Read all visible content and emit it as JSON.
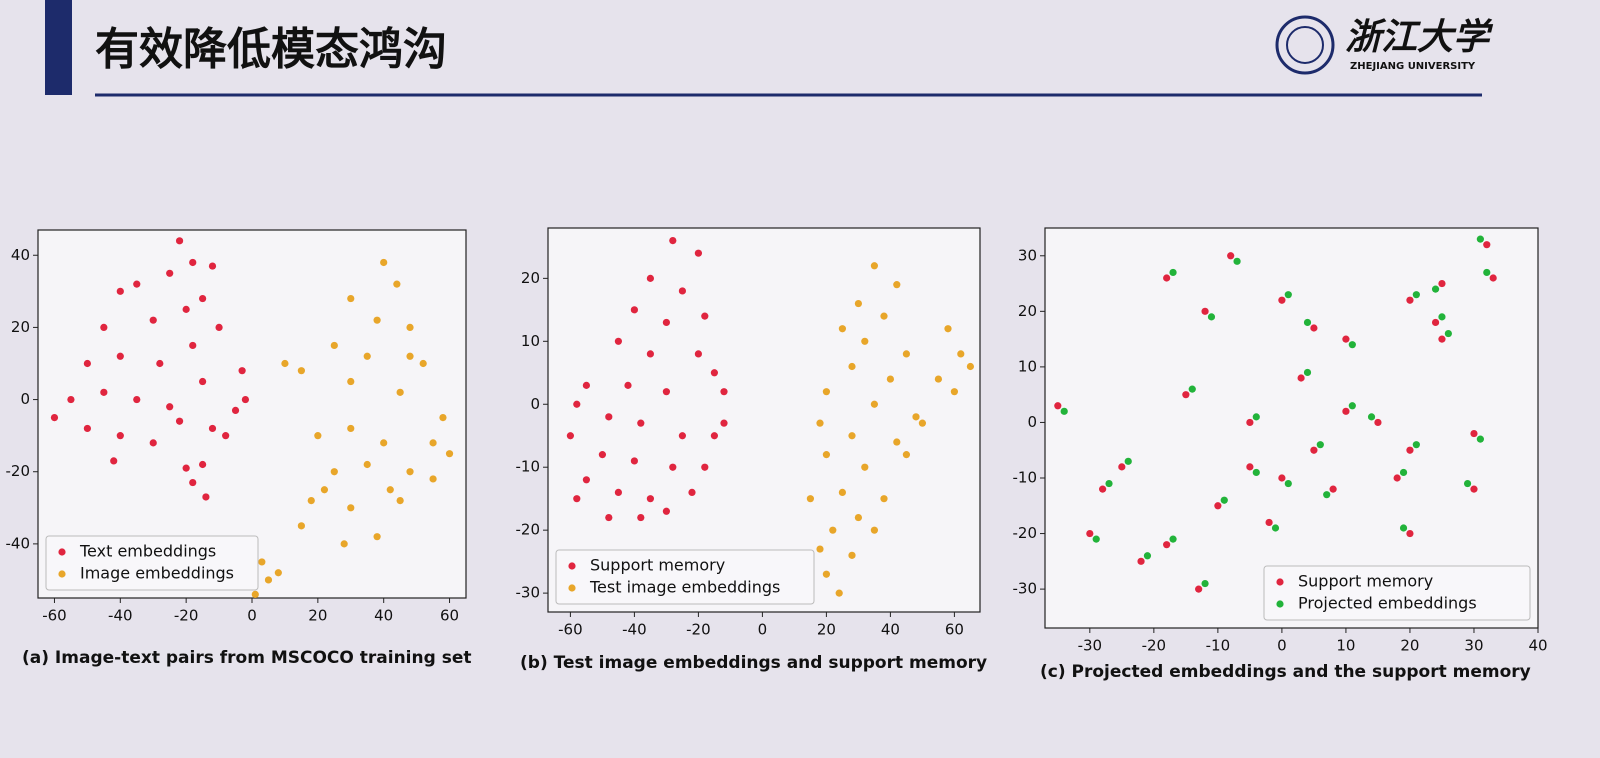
{
  "slide": {
    "title": "有效降低模态鸿沟",
    "logo_text": "浙江大学",
    "logo_subtext": "ZHEJIANG UNIVERSITY"
  },
  "chart_data": [
    {
      "type": "scatter",
      "title": "(a) Image-text pairs from MSCOCO training set",
      "legend": "lower left",
      "xlim": [
        -65,
        65
      ],
      "ylim": [
        -55,
        47
      ],
      "xticks": [
        -60,
        -40,
        -20,
        0,
        20,
        40,
        60
      ],
      "yticks": [
        -40,
        -20,
        0,
        20,
        40
      ],
      "series": [
        {
          "name": "Text embeddings",
          "color": "#e0253f",
          "x": [
            -40,
            -35,
            -25,
            -18,
            -12,
            -22,
            -45,
            -30,
            -20,
            -15,
            -50,
            -40,
            -28,
            -18,
            -10,
            -55,
            -45,
            -35,
            -25,
            -15,
            -60,
            -50,
            -40,
            -30,
            -22,
            -12,
            -5,
            -3,
            -2,
            -42,
            -20,
            -15,
            -14,
            -18,
            -8
          ],
          "y": [
            30,
            32,
            35,
            38,
            37,
            44,
            20,
            22,
            25,
            28,
            10,
            12,
            10,
            15,
            20,
            0,
            2,
            0,
            -2,
            5,
            -5,
            -8,
            -10,
            -12,
            -6,
            -8,
            -3,
            8,
            0,
            -17,
            -19,
            -18,
            -27,
            -23,
            -10
          ]
        },
        {
          "name": "Image embeddings",
          "color": "#e8a62a",
          "x": [
            40,
            44,
            30,
            38,
            48,
            25,
            35,
            48,
            52,
            15,
            30,
            45,
            58,
            20,
            30,
            40,
            55,
            25,
            35,
            48,
            55,
            18,
            30,
            45,
            15,
            28,
            38,
            3,
            5,
            1,
            8,
            22,
            42,
            60,
            10
          ],
          "y": [
            38,
            32,
            28,
            22,
            20,
            15,
            12,
            12,
            10,
            8,
            5,
            2,
            -5,
            -10,
            -8,
            -12,
            -12,
            -20,
            -18,
            -20,
            -22,
            -28,
            -30,
            -28,
            -35,
            -40,
            -38,
            -45,
            -50,
            -54,
            -48,
            -25,
            -25,
            -15,
            10
          ]
        }
      ]
    },
    {
      "type": "scatter",
      "title": "(b) Test image embeddings and support memory",
      "legend": "lower left",
      "xlim": [
        -67,
        68
      ],
      "ylim": [
        -33,
        28
      ],
      "xticks": [
        -60,
        -40,
        -20,
        0,
        20,
        40,
        60
      ],
      "yticks": [
        -30,
        -20,
        -10,
        0,
        10,
        20
      ],
      "series": [
        {
          "name": "Support memory",
          "color": "#e0253f",
          "x": [
            -28,
            -20,
            -35,
            -25,
            -40,
            -30,
            -18,
            -45,
            -35,
            -20,
            -15,
            -55,
            -42,
            -30,
            -12,
            -58,
            -48,
            -38,
            -25,
            -15,
            -60,
            -50,
            -40,
            -28,
            -18,
            -55,
            -45,
            -35,
            -22,
            -48,
            -38,
            -30,
            -58,
            -12
          ],
          "y": [
            26,
            24,
            20,
            18,
            15,
            13,
            14,
            10,
            8,
            8,
            5,
            3,
            3,
            2,
            2,
            0,
            -2,
            -3,
            -5,
            -5,
            -5,
            -8,
            -9,
            -10,
            -10,
            -12,
            -14,
            -15,
            -14,
            -18,
            -18,
            -17,
            -15,
            -3
          ]
        },
        {
          "name": "Test image embeddings",
          "color": "#e8a62a",
          "x": [
            35,
            42,
            30,
            38,
            25,
            32,
            45,
            58,
            62,
            28,
            40,
            55,
            60,
            20,
            35,
            48,
            18,
            28,
            42,
            20,
            32,
            45,
            25,
            38,
            30,
            22,
            35,
            18,
            20,
            24,
            28,
            50,
            65,
            15
          ],
          "y": [
            22,
            19,
            16,
            14,
            12,
            10,
            8,
            12,
            8,
            6,
            4,
            4,
            2,
            2,
            0,
            -2,
            -3,
            -5,
            -6,
            -8,
            -10,
            -8,
            -14,
            -15,
            -18,
            -20,
            -20,
            -23,
            -27,
            -30,
            -24,
            -3,
            6,
            -15
          ]
        }
      ]
    },
    {
      "type": "scatter",
      "title": "(c) Projected embeddings and the support memory",
      "legend": "lower right",
      "xlim": [
        -37,
        40
      ],
      "ylim": [
        -37,
        35
      ],
      "xticks": [
        -30,
        -20,
        -10,
        0,
        10,
        20,
        30,
        40
      ],
      "yticks": [
        -30,
        -20,
        -10,
        0,
        10,
        20,
        30
      ],
      "series": [
        {
          "name": "Support memory",
          "color": "#e0253f",
          "x": [
            -35,
            -18,
            -8,
            0,
            5,
            -12,
            10,
            20,
            25,
            32,
            33,
            25,
            -25,
            -18,
            -13,
            -5,
            0,
            5,
            -15,
            3,
            10,
            30,
            20,
            30,
            18,
            20,
            -30,
            -10,
            -5,
            15,
            -22,
            -2,
            8,
            -28,
            24
          ],
          "y": [
            3,
            26,
            30,
            22,
            17,
            20,
            15,
            22,
            25,
            32,
            26,
            15,
            -8,
            -22,
            -30,
            -8,
            -10,
            -5,
            5,
            8,
            2,
            -2,
            -5,
            -12,
            -10,
            -20,
            -20,
            -15,
            0,
            0,
            -25,
            -18,
            -12,
            -12,
            18
          ]
        },
        {
          "name": "Projected embeddings",
          "color": "#22b33a",
          "x": [
            -34,
            -17,
            -7,
            1,
            4,
            -11,
            11,
            21,
            24,
            31,
            32,
            26,
            -24,
            -17,
            -12,
            -4,
            1,
            6,
            -14,
            4,
            11,
            31,
            21,
            29,
            19,
            19,
            -29,
            -9,
            -4,
            14,
            -21,
            -1,
            7,
            -27,
            25
          ],
          "y": [
            2,
            27,
            29,
            23,
            18,
            19,
            14,
            23,
            24,
            33,
            27,
            16,
            -7,
            -21,
            -29,
            -9,
            -11,
            -4,
            6,
            9,
            3,
            -3,
            -4,
            -11,
            -9,
            -19,
            -21,
            -14,
            1,
            1,
            -24,
            -19,
            -13,
            -11,
            19
          ]
        }
      ]
    }
  ]
}
